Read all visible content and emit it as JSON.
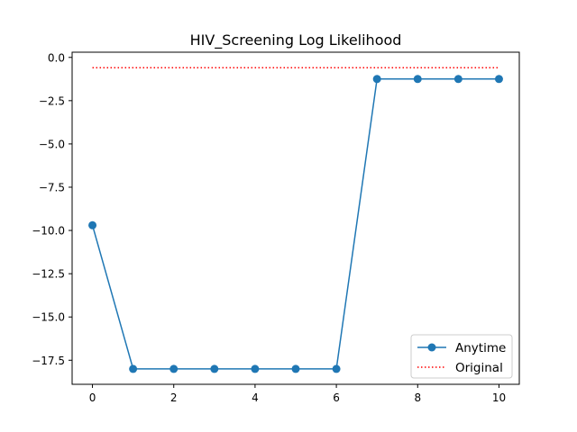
{
  "chart_data": {
    "type": "line",
    "title": "HIV_Screening Log Likelihood",
    "xlabel": "",
    "ylabel": "",
    "xlim": [
      -0.5,
      10.5
    ],
    "ylim": [
      -18.89,
      0.3
    ],
    "x_ticks": [
      0,
      2,
      4,
      6,
      8,
      10
    ],
    "x_tick_labels": [
      "0",
      "2",
      "4",
      "6",
      "8",
      "10"
    ],
    "y_ticks": [
      0.0,
      -2.5,
      -5.0,
      -7.5,
      -10.0,
      -12.5,
      -15.0,
      -17.5
    ],
    "y_tick_labels": [
      "0.0",
      "−2.5",
      "−5.0",
      "−7.5",
      "−10.0",
      "−12.5",
      "−15.0",
      "−17.5"
    ],
    "grid": false,
    "legend_position": "lower-right",
    "series": [
      {
        "name": "Anytime",
        "style": "solid-line-circle-markers",
        "color": "#1f77b4",
        "x": [
          0,
          1,
          2,
          3,
          4,
          5,
          6,
          7,
          8,
          9,
          10
        ],
        "y": [
          -9.7,
          -18.0,
          -18.0,
          -18.0,
          -18.0,
          -18.0,
          -18.0,
          -1.25,
          -1.25,
          -1.25,
          -1.25
        ]
      },
      {
        "name": "Original",
        "style": "dotted-line",
        "color": "#ff0000",
        "x": [
          0,
          10
        ],
        "y": [
          -0.6,
          -0.6
        ]
      }
    ]
  }
}
